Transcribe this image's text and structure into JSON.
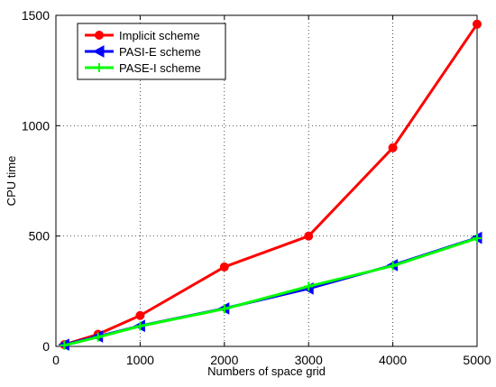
{
  "chart_data": {
    "type": "line",
    "title": "",
    "xlabel": "Numbers of space grid",
    "ylabel": "CPU time",
    "xlim": [
      0,
      5000
    ],
    "ylim": [
      0,
      1500
    ],
    "xticks": [
      0,
      1000,
      2000,
      3000,
      4000,
      5000
    ],
    "yticks": [
      0,
      500,
      1000,
      1500
    ],
    "grid": true,
    "legend_position": "top-left",
    "series": [
      {
        "name": "Implicit scheme",
        "color": "#ff0000",
        "marker": "circle",
        "x": [
          100,
          500,
          1000,
          2000,
          3000,
          4000,
          5000
        ],
        "y": [
          8,
          55,
          140,
          360,
          500,
          900,
          1460
        ]
      },
      {
        "name": "PASI-E scheme",
        "color": "#0000ff",
        "marker": "triangle-left",
        "x": [
          100,
          500,
          1000,
          2000,
          3000,
          4000,
          5000
        ],
        "y": [
          8,
          45,
          93,
          172,
          262,
          368,
          492
        ]
      },
      {
        "name": "PASE-I scheme",
        "color": "#00ff00",
        "marker": "plus",
        "x": [
          100,
          500,
          1000,
          2000,
          3000,
          4000,
          5000
        ],
        "y": [
          5,
          42,
          92,
          170,
          272,
          365,
          490
        ]
      }
    ]
  }
}
